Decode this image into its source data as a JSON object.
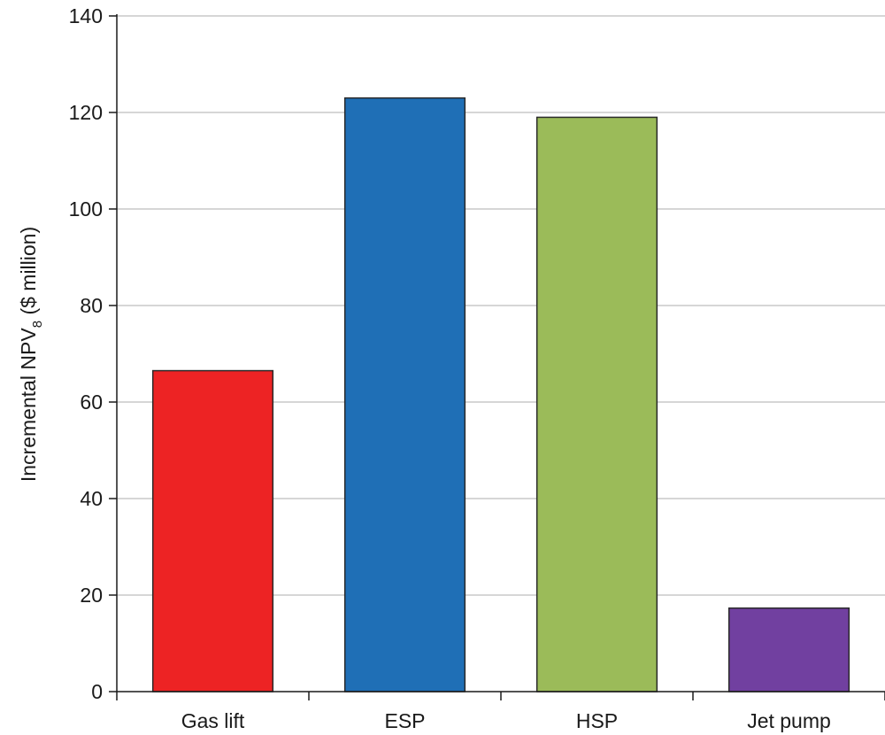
{
  "chart_data": {
    "type": "bar",
    "title": "",
    "xlabel": "",
    "ylabel": {
      "main": "Incremental NPV",
      "subscript": "8",
      "unit": " ($ million)"
    },
    "ylim": [
      0,
      140
    ],
    "yticks": [
      "0",
      "20",
      "40",
      "60",
      "80",
      "100",
      "120",
      "140"
    ],
    "grid": true,
    "legend": "none",
    "categories": [
      "Gas lift",
      "ESP",
      "HSP",
      "Jet pump"
    ],
    "values": [
      66.5,
      123,
      119,
      17.3
    ],
    "colors": [
      "#ed2324",
      "#1f6fb6",
      "#9bbb59",
      "#7140a0"
    ]
  }
}
